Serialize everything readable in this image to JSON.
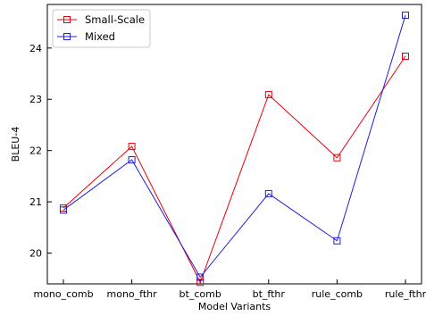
{
  "chart_data": {
    "type": "line",
    "title": "",
    "xlabel": "Model Variants",
    "ylabel": "BLEU-4",
    "categories": [
      "mono_comb",
      "mono_fthr",
      "bt_comb",
      "bt_fthr",
      "rule_comb",
      "rule_fthr"
    ],
    "ylim": [
      19.4,
      24.85
    ],
    "yticks": [
      20,
      21,
      22,
      23,
      24
    ],
    "grid": false,
    "legend_position": "top-left",
    "series": [
      {
        "name": "Small-Scale",
        "color": "#e8000b",
        "marker": "square-open",
        "values": [
          20.88,
          22.08,
          19.43,
          23.09,
          21.86,
          23.84
        ]
      },
      {
        "name": "Mixed",
        "color": "#1f1fd6",
        "marker": "square-open",
        "values": [
          20.84,
          21.82,
          19.53,
          21.16,
          20.24,
          24.64
        ]
      }
    ]
  }
}
